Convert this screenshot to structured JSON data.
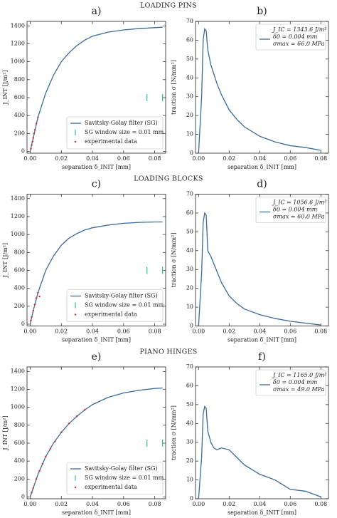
{
  "sections": [
    "LOADING PINS",
    "LOADING BLOCKS",
    "PIANO HINGES"
  ],
  "chart_data": [
    {
      "type": "line",
      "title": "a)",
      "x_label": "separation δ_INIT [mm]",
      "y_label": "J_INT [J/m²]",
      "xlim": [
        -0.002,
        0.087
      ],
      "ylim": [
        -20,
        1450
      ],
      "xticks": [
        {
          "value": 0,
          "label": "0.00"
        },
        {
          "value": 0.02,
          "label": "0.02"
        },
        {
          "value": 0.04,
          "label": "0.04"
        },
        {
          "value": 0.06,
          "label": "0.06"
        },
        {
          "value": 0.08,
          "label": "0.08"
        }
      ],
      "yticks": [
        0,
        200,
        400,
        600,
        800,
        1000,
        1200,
        1400
      ],
      "legend": "lower right",
      "x": [
        0,
        0.002,
        0.005,
        0.01,
        0.015,
        0.02,
        0.025,
        0.03,
        0.035,
        0.04,
        0.05,
        0.06,
        0.07,
        0.08,
        0.085
      ],
      "series": [
        {
          "name": "Savitsky-Golay filter (SG)",
          "style": "line",
          "color": "#3a6b99",
          "values": [
            0,
            150,
            380,
            650,
            850,
            1000,
            1100,
            1180,
            1240,
            1285,
            1330,
            1355,
            1370,
            1380,
            1385
          ]
        },
        {
          "name": "SG window size = 0.01 mm",
          "style": "vline",
          "color": "#2ec27e",
          "x": [
            0.075,
            0.085
          ],
          "values": [
            600,
            600
          ]
        },
        {
          "name": "experimental data",
          "style": "dots",
          "color": "#d62728",
          "x": [
            0.0005,
            0.001,
            0.0015,
            0.002,
            0.0025,
            0.003,
            0.004,
            0.005
          ],
          "values": [
            30,
            70,
            110,
            150,
            200,
            240,
            310,
            380
          ]
        }
      ]
    },
    {
      "type": "line",
      "title": "b)",
      "x_label": "separation δ_INIT [mm]",
      "y_label": "traction σ [N/mm²]",
      "xlim": [
        -0.002,
        0.085
      ],
      "ylim": [
        0,
        70
      ],
      "xticks": [
        {
          "value": 0,
          "label": "0.00"
        },
        {
          "value": 0.02,
          "label": "0.02"
        },
        {
          "value": 0.04,
          "label": "0.04"
        },
        {
          "value": 0.06,
          "label": "0.06"
        },
        {
          "value": 0.08,
          "label": "0.08"
        }
      ],
      "yticks": [
        0,
        10,
        20,
        30,
        40,
        50,
        60,
        70
      ],
      "legend": "upper right",
      "annotations": [
        "J_IC = 1343.6 J/m²",
        "δ0 = 0.004 mm",
        "σmax = 66.0 MPa"
      ],
      "x": [
        0,
        0.002,
        0.003,
        0.004,
        0.005,
        0.006,
        0.008,
        0.01,
        0.012,
        0.015,
        0.02,
        0.025,
        0.03,
        0.04,
        0.05,
        0.06,
        0.07,
        0.08
      ],
      "series": [
        {
          "style": "line",
          "color": "#3a6b99",
          "values": [
            0,
            30,
            60,
            66,
            65,
            55,
            47,
            42,
            37,
            31,
            23,
            18,
            14,
            9,
            6,
            4,
            3,
            1.5
          ]
        }
      ]
    },
    {
      "type": "line",
      "title": "c)",
      "x_label": "separation δ_INIT [mm]",
      "y_label": "J_INT [J/m²]",
      "xlim": [
        -0.002,
        0.087
      ],
      "ylim": [
        -20,
        1450
      ],
      "xticks": [
        {
          "value": 0,
          "label": "0.00"
        },
        {
          "value": 0.02,
          "label": "0.02"
        },
        {
          "value": 0.04,
          "label": "0.04"
        },
        {
          "value": 0.06,
          "label": "0.06"
        },
        {
          "value": 0.08,
          "label": "0.08"
        }
      ],
      "yticks": [
        0,
        200,
        400,
        600,
        800,
        1000,
        1200,
        1400
      ],
      "legend": "lower right",
      "x": [
        0,
        0.002,
        0.005,
        0.01,
        0.015,
        0.02,
        0.025,
        0.03,
        0.035,
        0.04,
        0.05,
        0.06,
        0.07,
        0.08,
        0.085
      ],
      "series": [
        {
          "name": "Savitsky-Golay filter (SG)",
          "style": "line",
          "color": "#3a6b99",
          "values": [
            0,
            150,
            350,
            600,
            760,
            880,
            960,
            1010,
            1050,
            1075,
            1105,
            1125,
            1135,
            1140,
            1140
          ]
        },
        {
          "name": "SG window size = 0.01 mm",
          "style": "vline",
          "color": "#2ec27e",
          "x": [
            0.075,
            0.085
          ],
          "values": [
            600,
            600
          ]
        },
        {
          "name": "experimental data",
          "style": "dots",
          "color": "#d62728",
          "x": [
            0.0005,
            0.001,
            0.002,
            0.003,
            0.004,
            0.005,
            0.006
          ],
          "values": [
            40,
            80,
            150,
            220,
            290,
            350,
            310
          ]
        }
      ]
    },
    {
      "type": "line",
      "title": "d)",
      "x_label": "separation δ_INIT [mm]",
      "y_label": "traction σ [N/mm²]",
      "xlim": [
        -0.002,
        0.085
      ],
      "ylim": [
        0,
        70
      ],
      "xticks": [
        {
          "value": 0,
          "label": "0.00"
        },
        {
          "value": 0.02,
          "label": "0.02"
        },
        {
          "value": 0.04,
          "label": "0.04"
        },
        {
          "value": 0.06,
          "label": "0.06"
        },
        {
          "value": 0.08,
          "label": "0.08"
        }
      ],
      "yticks": [
        0,
        10,
        20,
        30,
        40,
        50,
        60,
        70
      ],
      "legend": "upper right",
      "annotations": [
        "J_IC = 1056.6 J/m²",
        "δ0 = 0.004 mm",
        "σmax = 60.0 MPa"
      ],
      "x": [
        0,
        0.002,
        0.003,
        0.004,
        0.005,
        0.006,
        0.008,
        0.01,
        0.012,
        0.015,
        0.02,
        0.025,
        0.03,
        0.04,
        0.05,
        0.06,
        0.07,
        0.08
      ],
      "series": [
        {
          "style": "line",
          "color": "#3a6b99",
          "values": [
            0,
            28,
            55,
            60,
            59,
            40,
            37,
            33,
            29,
            23,
            16,
            12,
            9,
            6,
            4,
            2.5,
            1.5,
            0.5
          ]
        }
      ]
    },
    {
      "type": "line",
      "title": "e)",
      "x_label": "separation δ_INIT [mm]",
      "y_label": "J_INT [J/m²]",
      "xlim": [
        -0.002,
        0.087
      ],
      "ylim": [
        -20,
        1450
      ],
      "xticks": [
        {
          "value": 0,
          "label": "0.00"
        },
        {
          "value": 0.02,
          "label": "0.02"
        },
        {
          "value": 0.04,
          "label": "0.04"
        },
        {
          "value": 0.06,
          "label": "0.06"
        },
        {
          "value": 0.08,
          "label": "0.08"
        }
      ],
      "yticks": [
        0,
        200,
        400,
        600,
        800,
        1000,
        1200,
        1400
      ],
      "legend": "lower right",
      "x": [
        0,
        0.002,
        0.005,
        0.01,
        0.015,
        0.02,
        0.025,
        0.03,
        0.035,
        0.04,
        0.05,
        0.06,
        0.07,
        0.08,
        0.085
      ],
      "series": [
        {
          "name": "Savitsky-Golay filter (SG)",
          "style": "line",
          "color": "#3a6b99",
          "values": [
            0,
            100,
            250,
            450,
            600,
            720,
            820,
            900,
            970,
            1030,
            1110,
            1160,
            1190,
            1210,
            1215
          ]
        },
        {
          "name": "SG window size = 0.01 mm",
          "style": "vline",
          "color": "#2ec27e",
          "x": [
            0.075,
            0.085
          ],
          "values": [
            600,
            600
          ]
        },
        {
          "name": "experimental data",
          "style": "dots",
          "color": "#d62728",
          "x": [
            0.001,
            0.002,
            0.004,
            0.006,
            0.008,
            0.01,
            0.013,
            0.016,
            0.02,
            0.025,
            0.03,
            0.035
          ],
          "values": [
            50,
            100,
            200,
            290,
            370,
            450,
            540,
            620,
            720,
            820,
            900,
            970
          ]
        }
      ]
    },
    {
      "type": "line",
      "title": "f)",
      "x_label": "separation δ_INIT [mm]",
      "y_label": "traction σ [N/mm²]",
      "xlim": [
        -0.002,
        0.085
      ],
      "ylim": [
        0,
        70
      ],
      "xticks": [
        {
          "value": 0,
          "label": "0.00"
        },
        {
          "value": 0.02,
          "label": "0.02"
        },
        {
          "value": 0.04,
          "label": "0.04"
        },
        {
          "value": 0.06,
          "label": "0.06"
        },
        {
          "value": 0.08,
          "label": "0.08"
        }
      ],
      "yticks": [
        0,
        10,
        20,
        30,
        40,
        50,
        60,
        70
      ],
      "legend": "upper right",
      "annotations": [
        "J_IC = 1165.0 J/m²",
        "δ0 = 0.004 mm",
        "σmax = 49.0 MPa"
      ],
      "x": [
        0,
        0.002,
        0.003,
        0.004,
        0.005,
        0.006,
        0.008,
        0.01,
        0.012,
        0.015,
        0.02,
        0.025,
        0.03,
        0.04,
        0.05,
        0.06,
        0.07,
        0.08
      ],
      "series": [
        {
          "style": "line",
          "color": "#3a6b99",
          "values": [
            0,
            22,
            45,
            49,
            48,
            36,
            30,
            27,
            26,
            27,
            26,
            22,
            18,
            13,
            10,
            5,
            4,
            1
          ]
        }
      ]
    }
  ]
}
